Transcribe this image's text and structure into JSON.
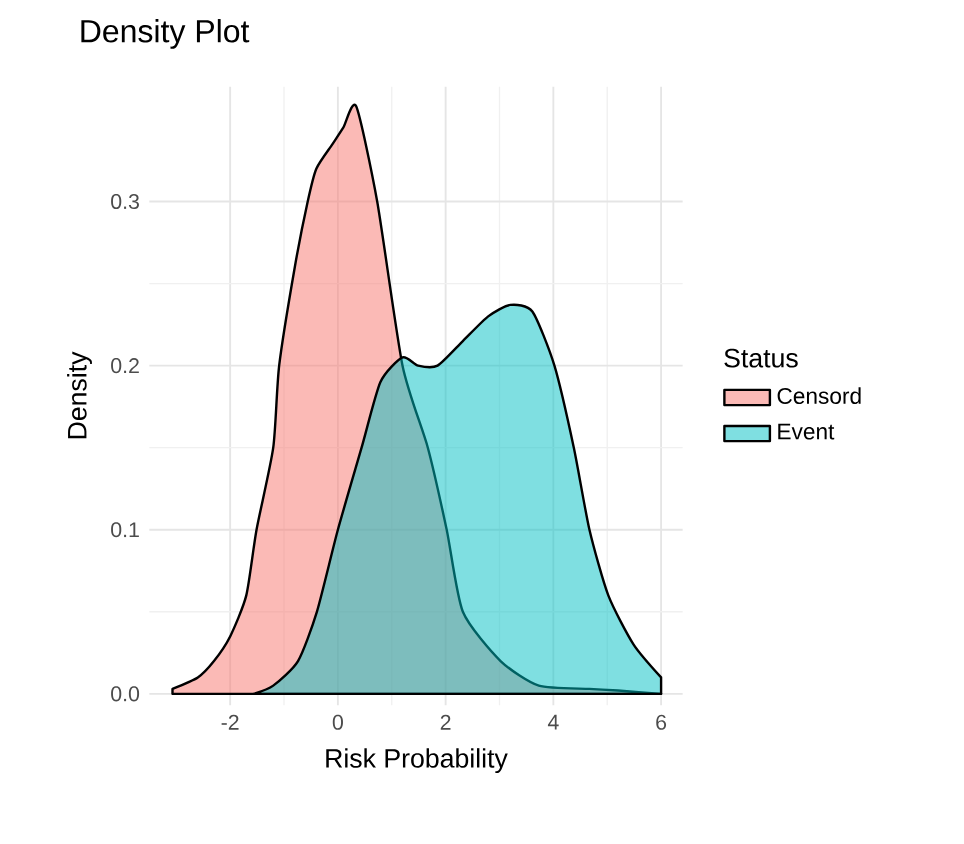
{
  "chart_data": {
    "type": "area",
    "title": "Density Plot",
    "xlabel": "Risk Probability",
    "ylabel": "Density",
    "legend_title": "Status",
    "legend": "right",
    "grid": true,
    "xlim": [
      -3.5,
      6.4
    ],
    "ylim": [
      -0.007,
      0.37
    ],
    "xticks": [
      -2,
      0,
      2,
      4,
      6
    ],
    "yticks": [
      {
        "value": 0,
        "label": "0.0"
      },
      {
        "value": 0.1,
        "label": "0.1"
      },
      {
        "value": 0.2,
        "label": "0.2"
      },
      {
        "value": 0.3,
        "label": "0.3"
      }
    ],
    "series": [
      {
        "name": "Censord",
        "color": "#f8766d",
        "x": [
          -3.07,
          -2.6,
          -2.3,
          -2.0,
          -1.7,
          -1.51,
          -1.2,
          -1.09,
          -0.8,
          -0.56,
          -0.4,
          -0.1,
          0.1,
          0.34,
          0.73,
          1.2,
          1.67,
          2.02,
          2.32,
          3.02,
          3.73,
          4.67,
          5.2,
          6.0
        ],
        "values": [
          0.003,
          0.01,
          0.02,
          0.035,
          0.06,
          0.1,
          0.15,
          0.2,
          0.26,
          0.3,
          0.32,
          0.335,
          0.345,
          0.358,
          0.3,
          0.2,
          0.15,
          0.1,
          0.05,
          0.02,
          0.005,
          0.003,
          0.002,
          0.0
        ]
      },
      {
        "name": "Event",
        "color": "#00bfc4",
        "x": [
          -1.56,
          -1.2,
          -0.74,
          -0.39,
          0.0,
          0.44,
          0.79,
          1.2,
          1.49,
          1.85,
          2.32,
          2.79,
          3.2,
          3.61,
          4.02,
          4.38,
          4.67,
          5.02,
          5.49,
          6.0
        ],
        "values": [
          0.0,
          0.005,
          0.02,
          0.05,
          0.1,
          0.15,
          0.19,
          0.205,
          0.2,
          0.2,
          0.215,
          0.23,
          0.237,
          0.233,
          0.2,
          0.15,
          0.1,
          0.06,
          0.03,
          0.01
        ]
      }
    ]
  }
}
